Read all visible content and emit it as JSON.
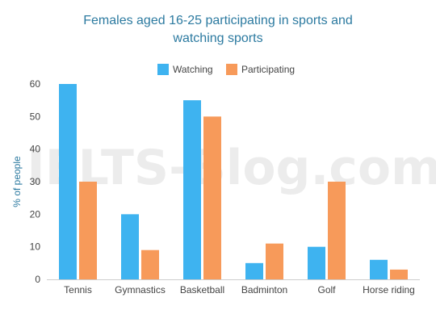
{
  "chart_data": {
    "type": "bar",
    "title_line1": "Females aged 16-25 participating in sports and",
    "title_line2": "watching sports",
    "ylabel": "% of people",
    "xlabel": "",
    "categories": [
      "Tennis",
      "Gymnastics",
      "Basketball",
      "Badminton",
      "Golf",
      "Horse riding"
    ],
    "series": [
      {
        "name": "Watching",
        "color": "#3eb3f0",
        "values": [
          60,
          20,
          55,
          5,
          10,
          6
        ]
      },
      {
        "name": "Participating",
        "color": "#f79a5a",
        "values": [
          30,
          9,
          50,
          11,
          30,
          3
        ]
      }
    ],
    "ylim": [
      0,
      60
    ],
    "yticks": [
      "0",
      "10",
      "20",
      "30",
      "40",
      "50",
      "60"
    ],
    "legend_position": "top-center",
    "grid": false,
    "watermark": "IELTS-Blog.com"
  }
}
